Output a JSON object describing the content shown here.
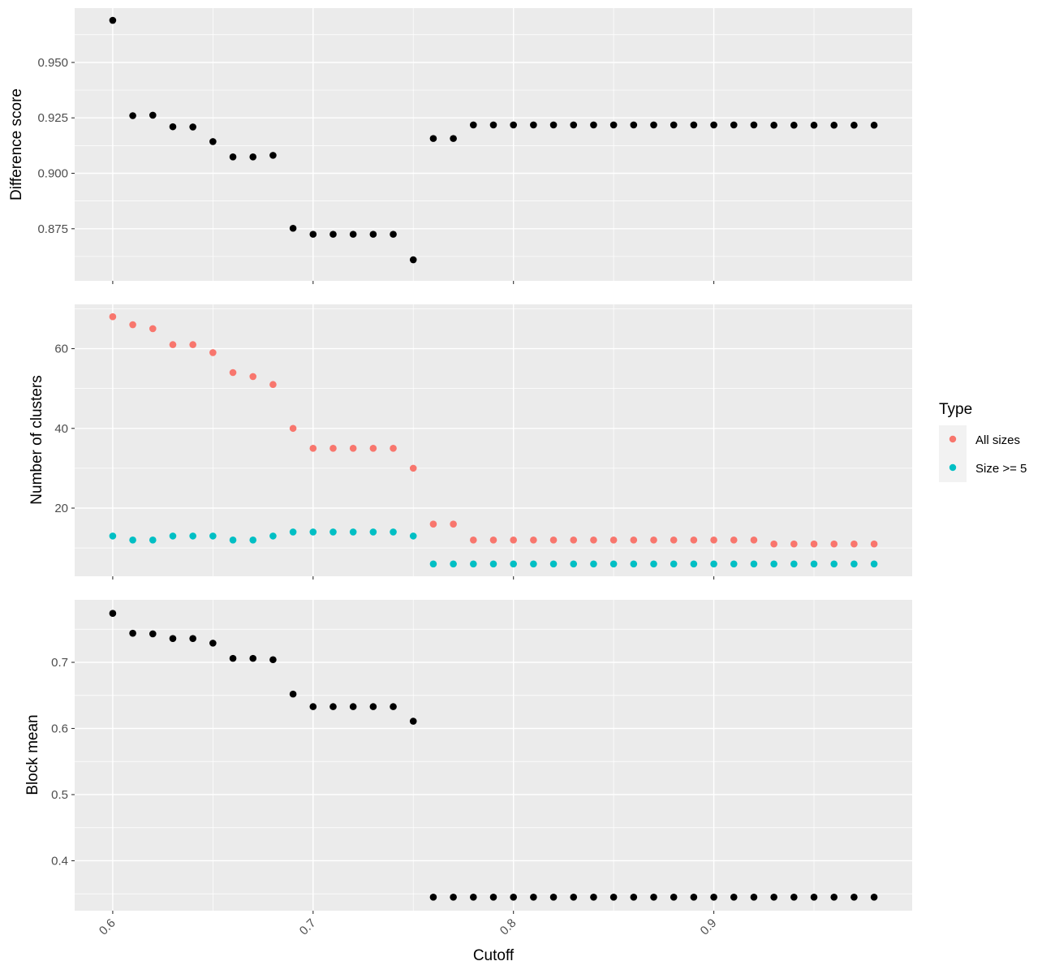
{
  "chart_data": [
    {
      "type": "scatter",
      "ylabel": "Difference score",
      "x": [
        0.6,
        0.61,
        0.62,
        0.63,
        0.64,
        0.65,
        0.66,
        0.67,
        0.68,
        0.69,
        0.7,
        0.71,
        0.72,
        0.73,
        0.74,
        0.75,
        0.76,
        0.77,
        0.78,
        0.79,
        0.8,
        0.81,
        0.82,
        0.83,
        0.84,
        0.85,
        0.86,
        0.87,
        0.88,
        0.89,
        0.9,
        0.91,
        0.92,
        0.93,
        0.94,
        0.95,
        0.96,
        0.97,
        0.98
      ],
      "series": [
        {
          "color": "#000000",
          "values": [
            0.969,
            0.926,
            0.9262,
            0.921,
            0.9209,
            0.9143,
            0.9074,
            0.9074,
            0.9081,
            0.8752,
            0.8725,
            0.8725,
            0.8725,
            0.8725,
            0.8725,
            0.861,
            0.9157,
            0.9157,
            0.9218,
            0.9218,
            0.9218,
            0.9218,
            0.9218,
            0.9218,
            0.9218,
            0.9218,
            0.9218,
            0.9218,
            0.9218,
            0.9218,
            0.9218,
            0.9218,
            0.9218,
            0.9217,
            0.9217,
            0.9217,
            0.9217,
            0.9217,
            0.9217
          ]
        }
      ],
      "xlim": [
        0.581,
        0.999
      ],
      "ylim": [
        0.8515,
        0.9745
      ],
      "yticks": [
        0.875,
        0.9,
        0.925,
        0.95
      ],
      "ytick_labels": [
        "0.875",
        "0.900",
        "0.925",
        "0.950"
      ],
      "grid": true
    },
    {
      "type": "scatter",
      "ylabel": "Number of clusters",
      "x": [
        0.6,
        0.61,
        0.62,
        0.63,
        0.64,
        0.65,
        0.66,
        0.67,
        0.68,
        0.69,
        0.7,
        0.71,
        0.72,
        0.73,
        0.74,
        0.75,
        0.76,
        0.77,
        0.78,
        0.79,
        0.8,
        0.81,
        0.82,
        0.83,
        0.84,
        0.85,
        0.86,
        0.87,
        0.88,
        0.89,
        0.9,
        0.91,
        0.92,
        0.93,
        0.94,
        0.95,
        0.96,
        0.97,
        0.98
      ],
      "series": [
        {
          "name": "All sizes",
          "color": "#F8766D",
          "values": [
            68,
            66,
            65,
            61,
            61,
            59,
            54,
            53,
            51,
            40,
            35,
            35,
            35,
            35,
            35,
            30,
            16,
            16,
            12,
            12,
            12,
            12,
            12,
            12,
            12,
            12,
            12,
            12,
            12,
            12,
            12,
            12,
            12,
            11,
            11,
            11,
            11,
            11,
            11
          ]
        },
        {
          "name": "Size >= 5",
          "color": "#00BFC4",
          "values": [
            13,
            12,
            12,
            13,
            13,
            13,
            12,
            12,
            13,
            14,
            14,
            14,
            14,
            14,
            14,
            13,
            6,
            6,
            6,
            6,
            6,
            6,
            6,
            6,
            6,
            6,
            6,
            6,
            6,
            6,
            6,
            6,
            6,
            6,
            6,
            6,
            6,
            6,
            6
          ]
        }
      ],
      "xlim": [
        0.581,
        0.999
      ],
      "ylim": [
        2.9,
        71.1
      ],
      "yticks": [
        20,
        40,
        60
      ],
      "ytick_labels": [
        "20",
        "40",
        "60"
      ],
      "grid": true
    },
    {
      "type": "scatter",
      "ylabel": "Block mean",
      "x": [
        0.6,
        0.61,
        0.62,
        0.63,
        0.64,
        0.65,
        0.66,
        0.67,
        0.68,
        0.69,
        0.7,
        0.71,
        0.72,
        0.73,
        0.74,
        0.75,
        0.76,
        0.77,
        0.78,
        0.79,
        0.8,
        0.81,
        0.82,
        0.83,
        0.84,
        0.85,
        0.86,
        0.87,
        0.88,
        0.89,
        0.9,
        0.91,
        0.92,
        0.93,
        0.94,
        0.95,
        0.96,
        0.97,
        0.98
      ],
      "series": [
        {
          "color": "#000000",
          "values": [
            0.774,
            0.744,
            0.743,
            0.736,
            0.736,
            0.729,
            0.706,
            0.706,
            0.704,
            0.652,
            0.633,
            0.633,
            0.633,
            0.633,
            0.633,
            0.611,
            0.345,
            0.345,
            0.345,
            0.345,
            0.345,
            0.345,
            0.345,
            0.345,
            0.345,
            0.345,
            0.345,
            0.345,
            0.345,
            0.345,
            0.345,
            0.345,
            0.345,
            0.345,
            0.345,
            0.345,
            0.345,
            0.345,
            0.345
          ]
        }
      ],
      "xlim": [
        0.581,
        0.999
      ],
      "ylim": [
        0.3245,
        0.7945
      ],
      "yticks": [
        0.4,
        0.5,
        0.6,
        0.7
      ],
      "ytick_labels": [
        "0.4",
        "0.5",
        "0.6",
        "0.7"
      ],
      "grid": true
    }
  ],
  "x_axis": {
    "label": "Cutoff",
    "ticks": [
      0.6,
      0.7,
      0.8,
      0.9
    ],
    "tick_labels": [
      "0.6",
      "0.7",
      "0.8",
      "0.9"
    ],
    "tick_label_rotation": -45
  },
  "legend": {
    "title": "Type",
    "placement": "right",
    "items": [
      {
        "label": "All sizes",
        "color": "#F8766D"
      },
      {
        "label": "Size >= 5",
        "color": "#00BFC4"
      }
    ]
  },
  "colors": {
    "panel_background": "#EBEBEB",
    "major_grid": "#FFFFFF",
    "tick": "#333333"
  }
}
